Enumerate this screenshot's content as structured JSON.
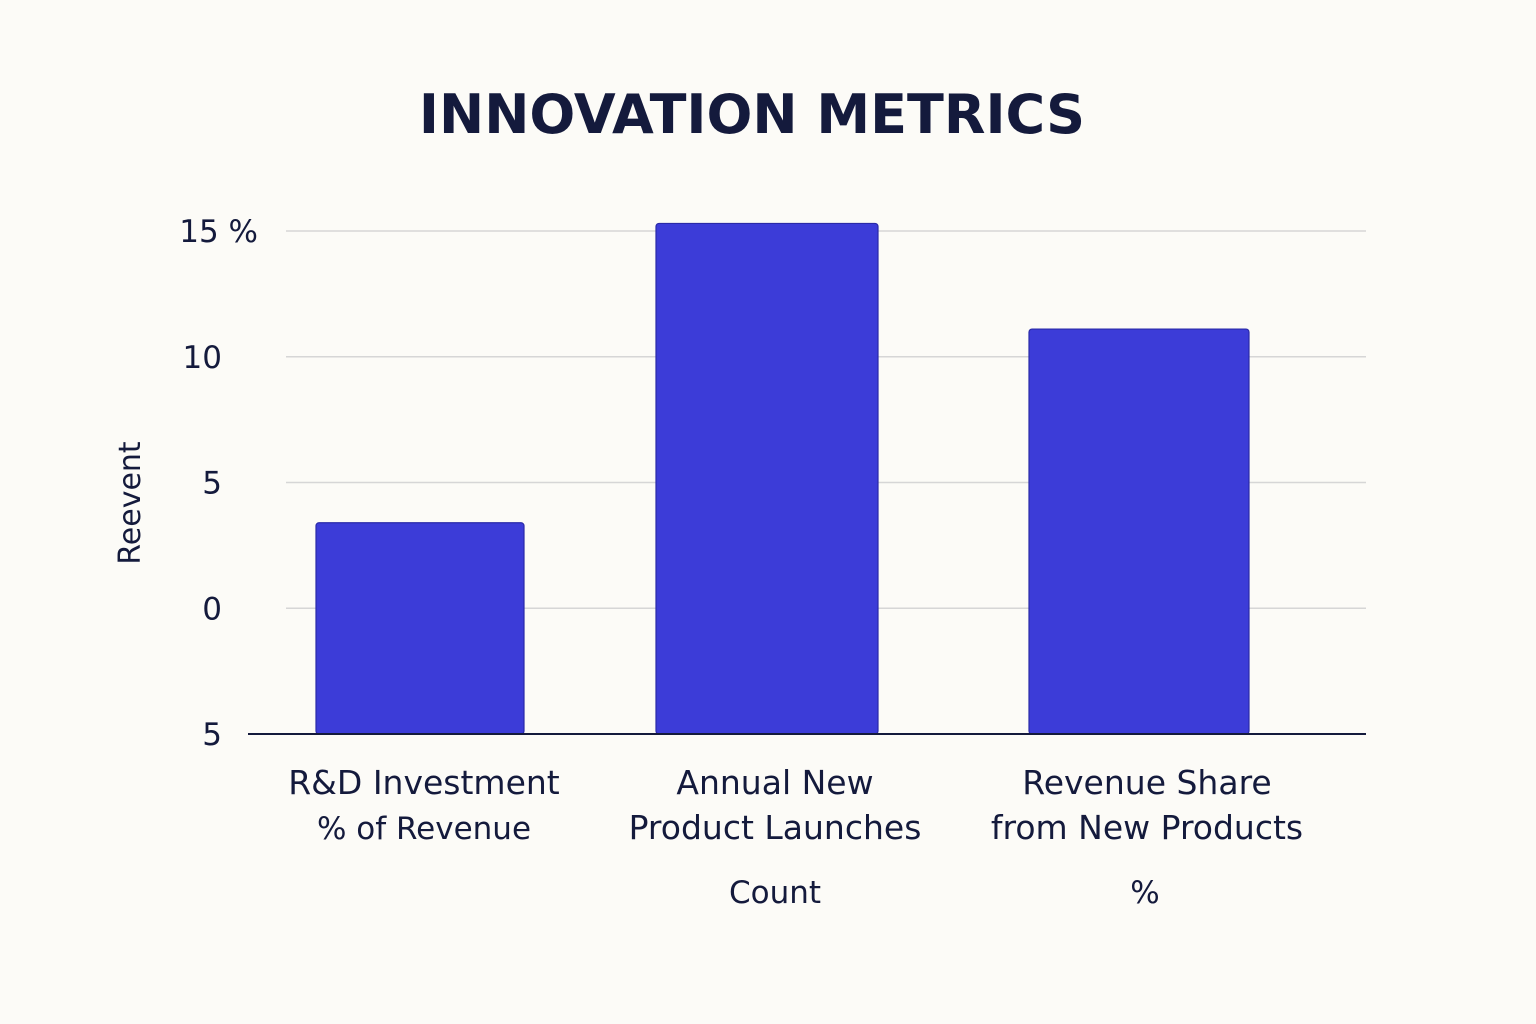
{
  "chart_data": {
    "type": "bar",
    "title": "INNOVATION METRICS",
    "ylabel": "Reevent",
    "xlabel": "",
    "y_tick_labels": [
      "15 %",
      "10",
      "5",
      "0",
      "5"
    ],
    "ylim": [
      -5,
      15
    ],
    "grid": true,
    "legend": "none",
    "categories": [
      {
        "lines": [
          "R&D Investment",
          "% of Revenue"
        ],
        "unit": ""
      },
      {
        "lines": [
          "Annual New",
          "Product Launches"
        ],
        "unit": "Count"
      },
      {
        "lines": [
          "Revenue Share",
          "from New Products"
        ],
        "unit": "%"
      }
    ],
    "values": [
      3.4,
      15.3,
      11.1
    ],
    "colors": {
      "bar": "#3c3cd8",
      "text": "#141a3c",
      "grid": "#d6d6d6",
      "axis": "#141a3c",
      "background": "#fcfbf7"
    }
  }
}
